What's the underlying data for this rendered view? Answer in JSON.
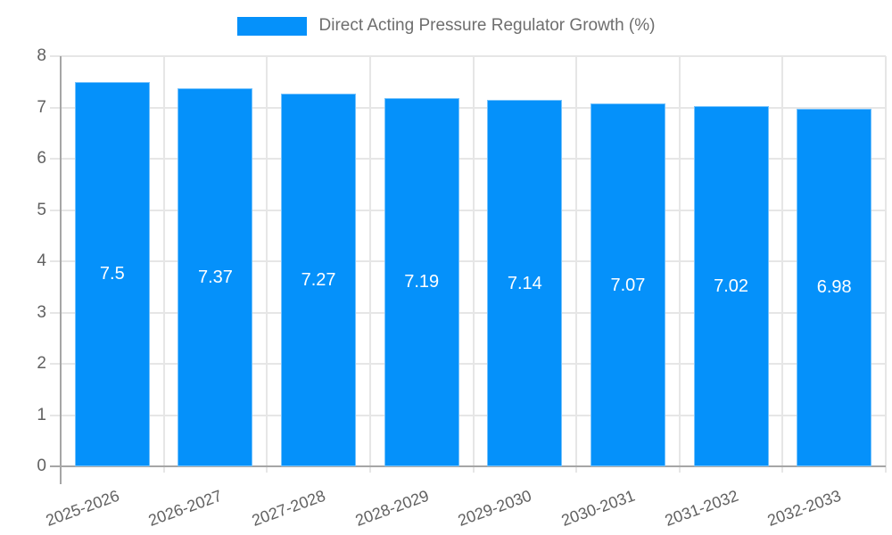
{
  "legend": {
    "label": "Direct Acting Pressure Regulator Growth (%)"
  },
  "colors": {
    "bar": "#0591fa",
    "grid": "#e6e6e6",
    "axis": "#a6a6a6",
    "tick_label": "#616161",
    "legend_text": "#6e6e6e",
    "value_label": "#ffffff",
    "background": "#ffffff"
  },
  "chart_data": {
    "type": "bar",
    "title": "Direct Acting Pressure Regulator Growth (%)",
    "categories": [
      "2025-2026",
      "2026-2027",
      "2027-2028",
      "2028-2029",
      "2029-2030",
      "2030-2031",
      "2031-2032",
      "2032-2033"
    ],
    "values": [
      7.5,
      7.37,
      7.27,
      7.19,
      7.14,
      7.07,
      7.02,
      6.98
    ],
    "value_labels": [
      "7.5",
      "7.37",
      "7.27",
      "7.19",
      "7.14",
      "7.07",
      "7.02",
      "6.98"
    ],
    "xlabel": "",
    "ylabel": "",
    "ylim": [
      0,
      8
    ],
    "yticks": [
      0,
      1,
      2,
      3,
      4,
      5,
      6,
      7,
      8
    ],
    "grid": true,
    "legend_position": "top",
    "x_tick_rotation_deg": -20,
    "value_label_position": "center"
  }
}
